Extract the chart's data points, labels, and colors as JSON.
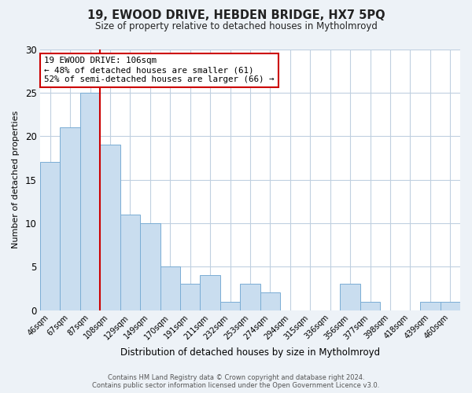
{
  "title": "19, EWOOD DRIVE, HEBDEN BRIDGE, HX7 5PQ",
  "subtitle": "Size of property relative to detached houses in Mytholmroyd",
  "xlabel": "Distribution of detached houses by size in Mytholmroyd",
  "ylabel": "Number of detached properties",
  "footer_line1": "Contains HM Land Registry data © Crown copyright and database right 2024.",
  "footer_line2": "Contains public sector information licensed under the Open Government Licence v3.0.",
  "annotation_line1": "19 EWOOD DRIVE: 106sqm",
  "annotation_line2": "← 48% of detached houses are smaller (61)",
  "annotation_line3": "52% of semi-detached houses are larger (66) →",
  "bar_labels": [
    "46sqm",
    "67sqm",
    "87sqm",
    "108sqm",
    "129sqm",
    "149sqm",
    "170sqm",
    "191sqm",
    "211sqm",
    "232sqm",
    "253sqm",
    "274sqm",
    "294sqm",
    "315sqm",
    "336sqm",
    "356sqm",
    "377sqm",
    "398sqm",
    "418sqm",
    "439sqm",
    "460sqm"
  ],
  "bar_values": [
    17,
    21,
    25,
    19,
    11,
    10,
    5,
    3,
    4,
    1,
    3,
    2,
    0,
    0,
    0,
    3,
    1,
    0,
    0,
    1,
    1
  ],
  "bar_color": "#c9ddef",
  "bar_edge_color": "#7aadd4",
  "reference_line_index": 2.5,
  "reference_line_color": "#cc0000",
  "ylim": [
    0,
    30
  ],
  "yticks": [
    0,
    5,
    10,
    15,
    20,
    25,
    30
  ],
  "bg_color": "#edf2f7",
  "plot_bg_color": "#ffffff",
  "grid_color": "#c0d0e0",
  "annotation_box_color": "#ffffff",
  "annotation_border_color": "#cc0000"
}
